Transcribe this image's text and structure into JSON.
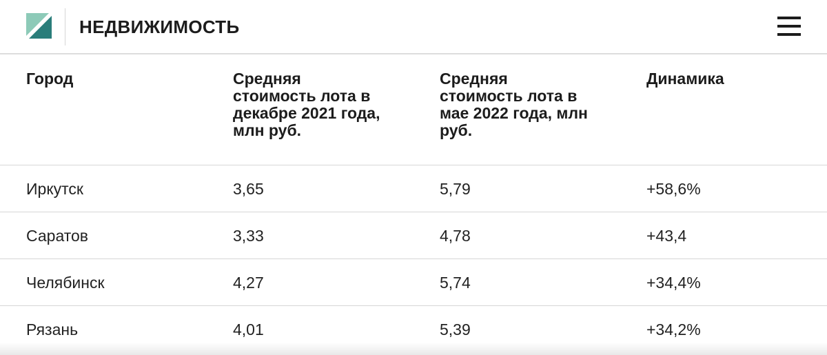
{
  "header": {
    "section_title": "НЕДВИЖИМОСТЬ",
    "logo_icon": "logo-icon",
    "menu_icon": "hamburger-menu-icon",
    "colors": {
      "logo_teal": "#2a7d7a",
      "logo_light": "#7fc3b0",
      "text": "#1c1c1c"
    }
  },
  "table": {
    "columns": [
      "Город",
      "Средняя стоимость лота в декабре 2021 года, млн руб.",
      "Средняя стоимость лота в мае 2022 года, млн руб.",
      "Динамика"
    ],
    "rows": [
      [
        "Иркутск",
        "3,65",
        "5,79",
        "+58,6%"
      ],
      [
        "Саратов",
        "3,33",
        "4,78",
        "+43,4"
      ],
      [
        "Челябинск",
        "4,27",
        "5,74",
        "+34,4%"
      ],
      [
        "Рязань",
        "4,01",
        "5,39",
        "+34,2%"
      ]
    ]
  }
}
